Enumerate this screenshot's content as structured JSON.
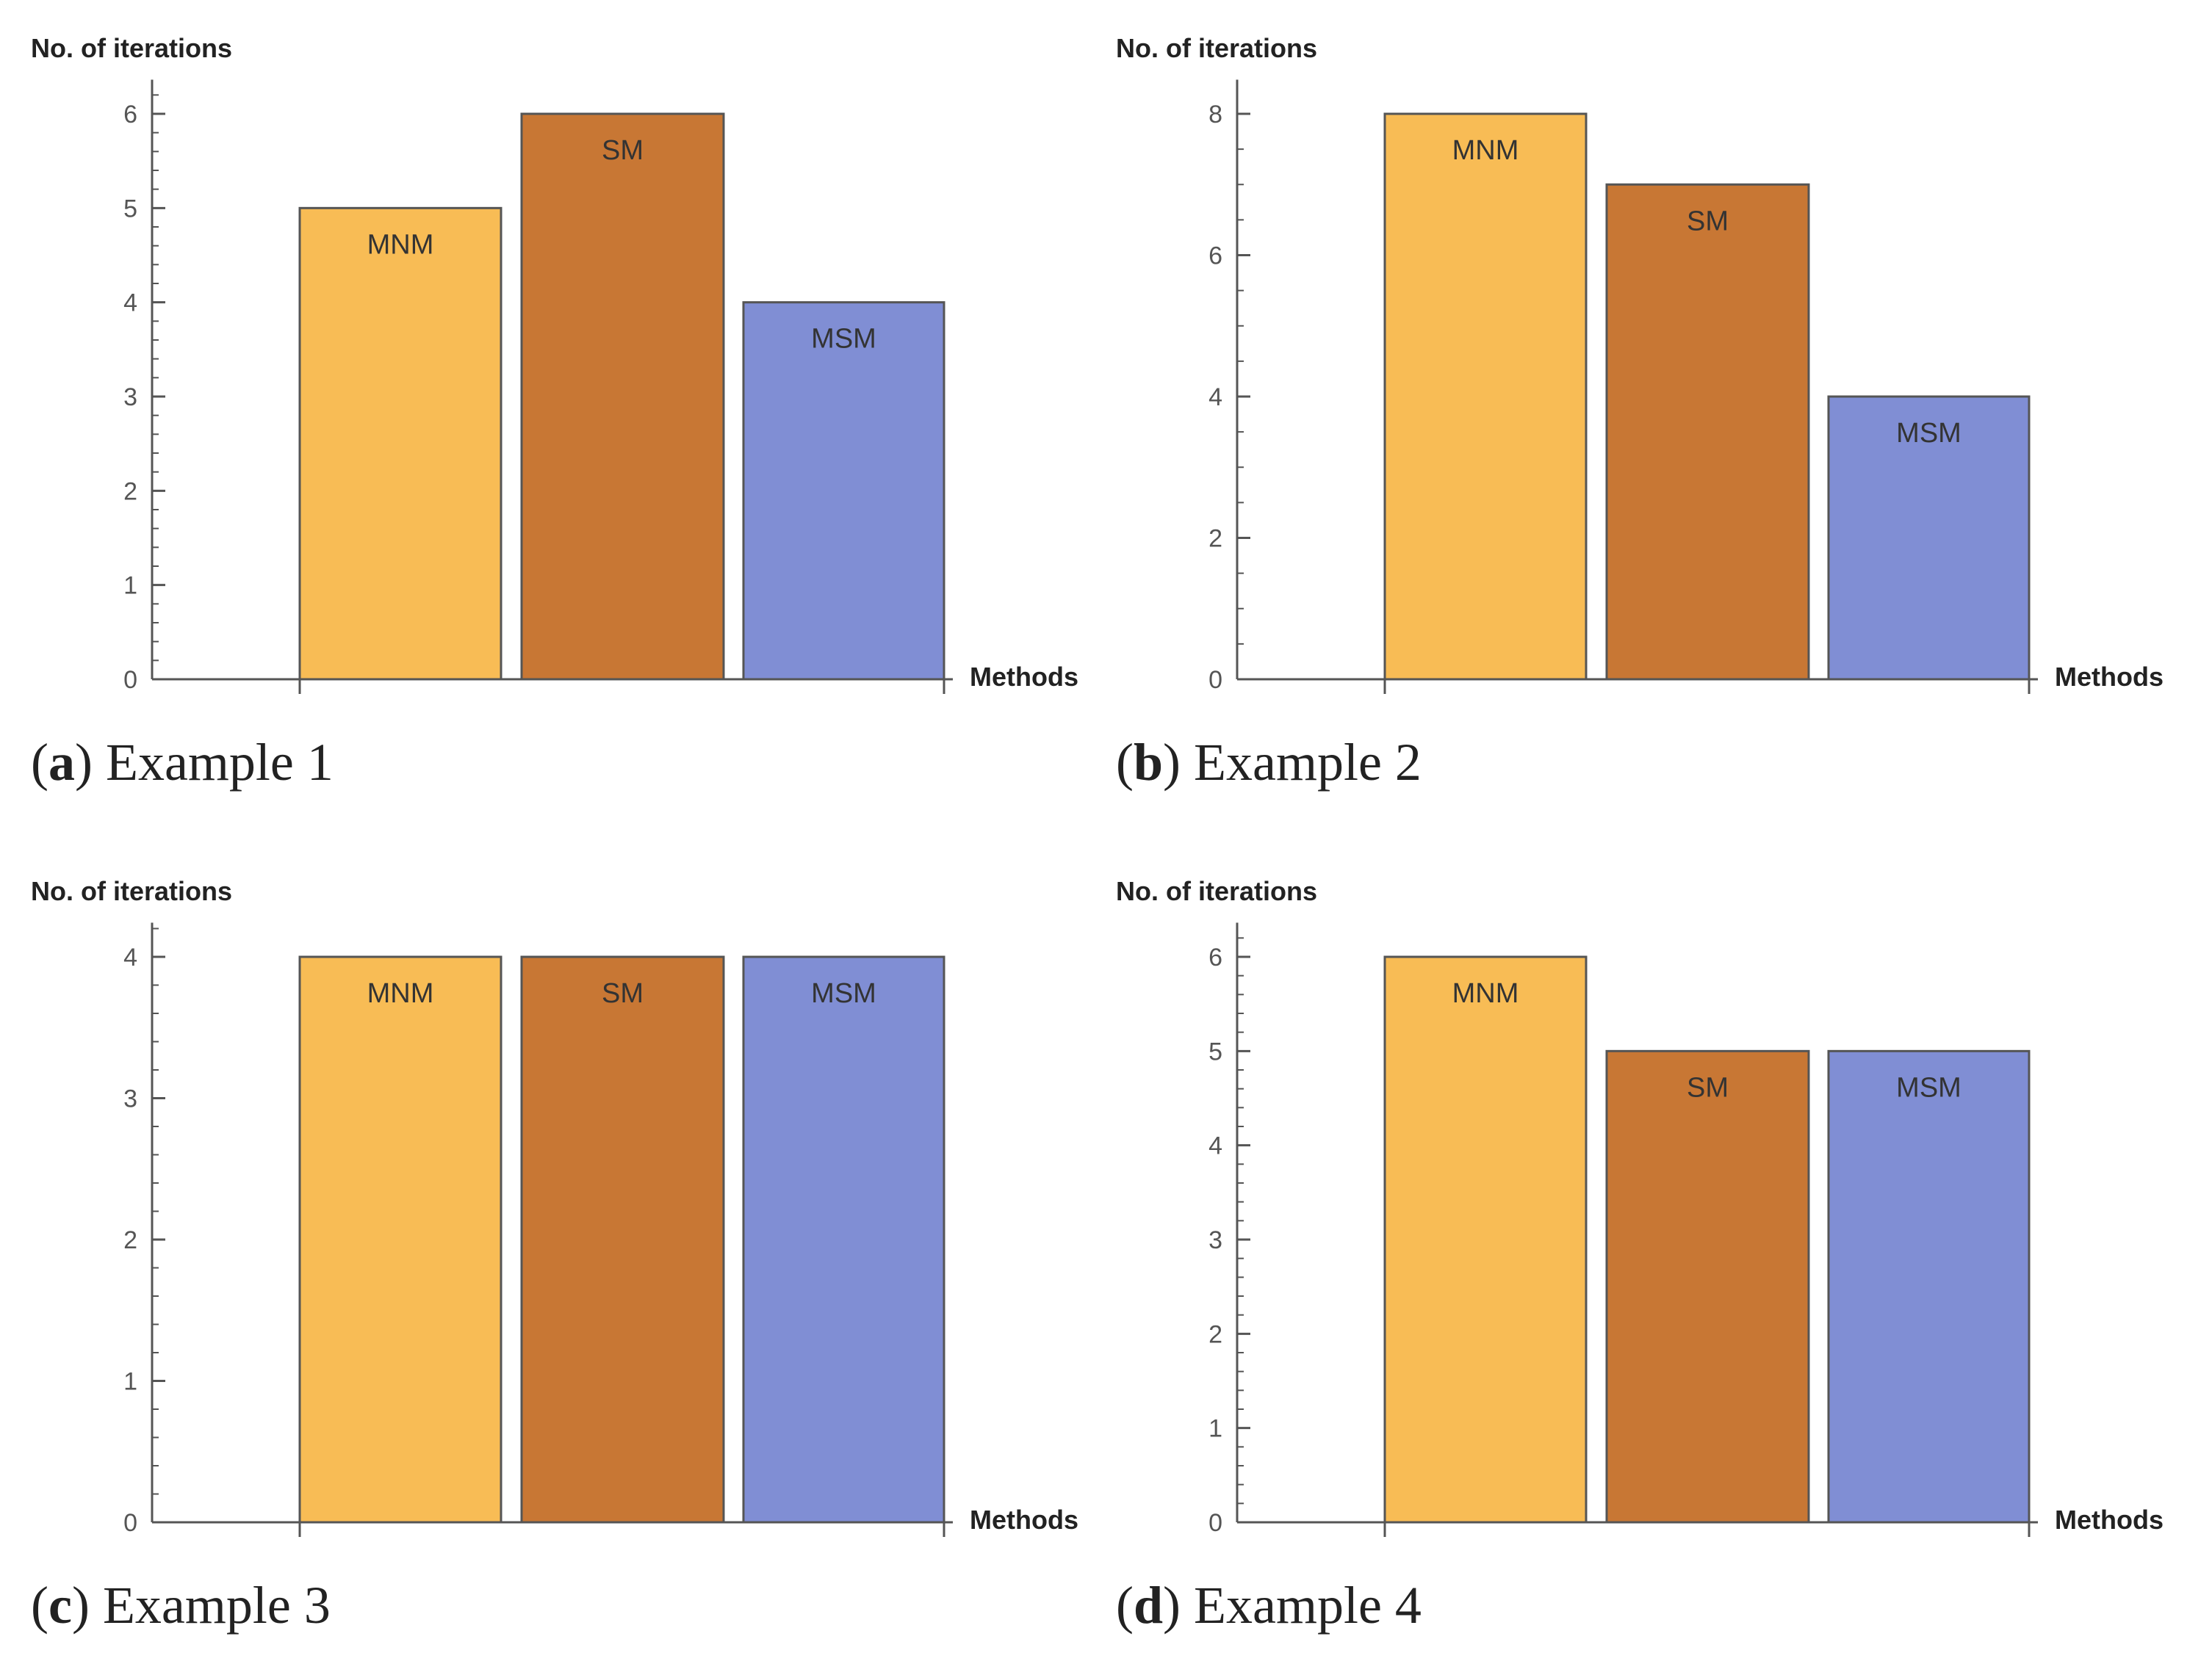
{
  "colors": {
    "MNM": "#F8BC55",
    "SM": "#C87734",
    "MSM": "#808ED4",
    "axis": "#555555",
    "bar_edge": "#555555"
  },
  "chart_data": [
    {
      "type": "bar",
      "caption_letter": "a",
      "caption_text": "Example 1",
      "ylabel": "No. of iterations",
      "xlabel": "Methods",
      "categories": [
        "MNM",
        "SM",
        "MSM"
      ],
      "values": [
        5,
        6,
        4
      ],
      "ylim": [
        0,
        6.3
      ],
      "yticks": [
        0,
        1,
        2,
        3,
        4,
        5,
        6
      ],
      "minor_step": 0.2
    },
    {
      "type": "bar",
      "caption_letter": "b",
      "caption_text": "Example 2",
      "ylabel": "No. of iterations",
      "xlabel": "Methods",
      "categories": [
        "MNM",
        "SM",
        "MSM"
      ],
      "values": [
        8,
        7,
        4
      ],
      "ylim": [
        0,
        8.4
      ],
      "yticks": [
        0,
        2,
        4,
        6,
        8
      ],
      "minor_step": 0.5
    },
    {
      "type": "bar",
      "caption_letter": "c",
      "caption_text": "Example 3",
      "ylabel": "No. of iterations",
      "xlabel": "Methods",
      "categories": [
        "MNM",
        "SM",
        "MSM"
      ],
      "values": [
        4,
        4,
        4
      ],
      "ylim": [
        0,
        4.2
      ],
      "yticks": [
        0,
        1,
        2,
        3,
        4
      ],
      "minor_step": 0.2
    },
    {
      "type": "bar",
      "caption_letter": "d",
      "caption_text": "Example 4",
      "ylabel": "No. of iterations",
      "xlabel": "Methods",
      "categories": [
        "MNM",
        "SM",
        "MSM"
      ],
      "values": [
        6,
        5,
        5
      ],
      "ylim": [
        0,
        6.3
      ],
      "yticks": [
        0,
        1,
        2,
        3,
        4,
        5,
        6
      ],
      "minor_step": 0.2
    }
  ]
}
